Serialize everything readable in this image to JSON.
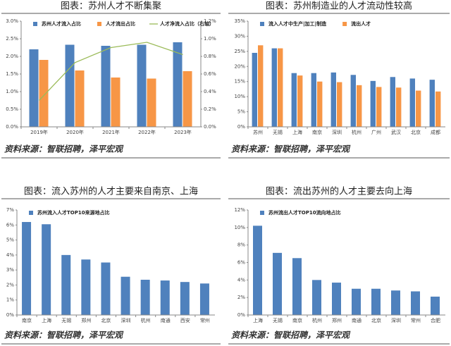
{
  "chart_data": [
    {
      "type": "bar",
      "title": "图表：苏州人才不断集聚",
      "source": "资料来源：智联招聘，泽平宏观",
      "categories": [
        "2019年",
        "2020年",
        "2021年",
        "2022年",
        "2023年"
      ],
      "series": [
        {
          "name": "苏州人才流入占比",
          "color": "#4f81bd",
          "values": [
            2.2,
            2.33,
            2.3,
            2.33,
            2.4
          ]
        },
        {
          "name": "人才流出占比",
          "color": "#f79646",
          "values": [
            1.9,
            1.6,
            1.4,
            1.37,
            1.58
          ]
        },
        {
          "name": "人才净流入占比（右轴）",
          "color": "#9bbb59",
          "type": "line",
          "axis": "y2",
          "values": [
            0.3,
            0.73,
            0.9,
            0.96,
            0.82
          ]
        }
      ],
      "ylim": [
        0,
        3
      ],
      "yticks": [
        {
          "value": 0,
          "label": "0.0%"
        },
        {
          "value": 0.5,
          "label": "0.5%"
        },
        {
          "value": 1,
          "label": "1.0%"
        },
        {
          "value": 1.5,
          "label": "1.5%"
        },
        {
          "value": 2,
          "label": "2.0%"
        },
        {
          "value": 2.5,
          "label": "2.5%"
        },
        {
          "value": 3,
          "label": "3.0%"
        }
      ],
      "y2lim": [
        0,
        1.2
      ],
      "y2ticks": [
        {
          "value": 0,
          "label": "0.0%"
        },
        {
          "value": 0.2,
          "label": "0.2%"
        },
        {
          "value": 0.4,
          "label": "0.4%"
        },
        {
          "value": 0.6,
          "label": "0.6%"
        },
        {
          "value": 0.8,
          "label": "0.8%"
        },
        {
          "value": 1,
          "label": "1.0%"
        },
        {
          "value": 1.2,
          "label": "1.2%"
        }
      ]
    },
    {
      "type": "bar",
      "title": "图表：苏州制造业的人才流动性较高",
      "source": "资料来源：智联招聘，泽平宏观",
      "categories": [
        "苏州",
        "无锡",
        "上海",
        "南京",
        "深圳",
        "杭州",
        "广州",
        "武汉",
        "北京",
        "成都"
      ],
      "series": [
        {
          "name": "流入人才中生产|加工|制造",
          "color": "#4f81bd",
          "values": [
            24.5,
            26,
            17.8,
            17.8,
            18,
            17.2,
            15.2,
            16.5,
            16,
            15.6
          ]
        },
        {
          "name": "流出人才",
          "color": "#f79646",
          "values": [
            27,
            26,
            17,
            15,
            14.8,
            13.8,
            13.2,
            13,
            12,
            11.7
          ]
        }
      ],
      "ylim": [
        0,
        35
      ],
      "yticks": [
        {
          "value": 0,
          "label": "0%"
        },
        {
          "value": 5,
          "label": "5%"
        },
        {
          "value": 10,
          "label": "10%"
        },
        {
          "value": 15,
          "label": "15%"
        },
        {
          "value": 20,
          "label": "20%"
        },
        {
          "value": 25,
          "label": "25%"
        },
        {
          "value": 30,
          "label": "30%"
        },
        {
          "value": 35,
          "label": "35%"
        }
      ]
    },
    {
      "type": "bar",
      "title": "图表：流入苏州的人才主要来自南京、上海",
      "source": "资料来源：智联招聘，泽平宏观",
      "categories": [
        "南京",
        "上海",
        "无锡",
        "郑州",
        "北京",
        "深圳",
        "杭州",
        "南通",
        "西安",
        "常州"
      ],
      "series": [
        {
          "name": "苏州流入人才TOP10来源地占比",
          "color": "#4f81bd",
          "values": [
            6.2,
            6.05,
            4.0,
            3.7,
            3.5,
            2.55,
            2.35,
            2.3,
            2.2,
            2.1
          ]
        }
      ],
      "ylim": [
        0,
        7
      ],
      "yticks": [
        {
          "value": 0,
          "label": "0%"
        },
        {
          "value": 1,
          "label": "1%"
        },
        {
          "value": 2,
          "label": "2%"
        },
        {
          "value": 3,
          "label": "3%"
        },
        {
          "value": 4,
          "label": "4%"
        },
        {
          "value": 5,
          "label": "5%"
        },
        {
          "value": 6,
          "label": "6%"
        },
        {
          "value": 7,
          "label": "7%"
        }
      ]
    },
    {
      "type": "bar",
      "title": "图表：流出苏州的人才主要去向上海",
      "source": "资料来源：智联招聘，泽平宏观",
      "categories": [
        "上海",
        "无锡",
        "南京",
        "杭州",
        "郑州",
        "南通",
        "北京",
        "深圳",
        "常州",
        "合肥"
      ],
      "series": [
        {
          "name": "苏州流出人才TOP10流向地占比",
          "color": "#4f81bd",
          "values": [
            10.2,
            7.1,
            6.5,
            4.0,
            3.7,
            3.0,
            3.0,
            2.8,
            2.7,
            2.1
          ]
        }
      ],
      "ylim": [
        0,
        12
      ],
      "yticks": [
        {
          "value": 0,
          "label": "0%"
        },
        {
          "value": 2,
          "label": "2%"
        },
        {
          "value": 4,
          "label": "4%"
        },
        {
          "value": 6,
          "label": "6%"
        },
        {
          "value": 8,
          "label": "8%"
        },
        {
          "value": 10,
          "label": "10%"
        },
        {
          "value": 12,
          "label": "12%"
        }
      ]
    }
  ]
}
